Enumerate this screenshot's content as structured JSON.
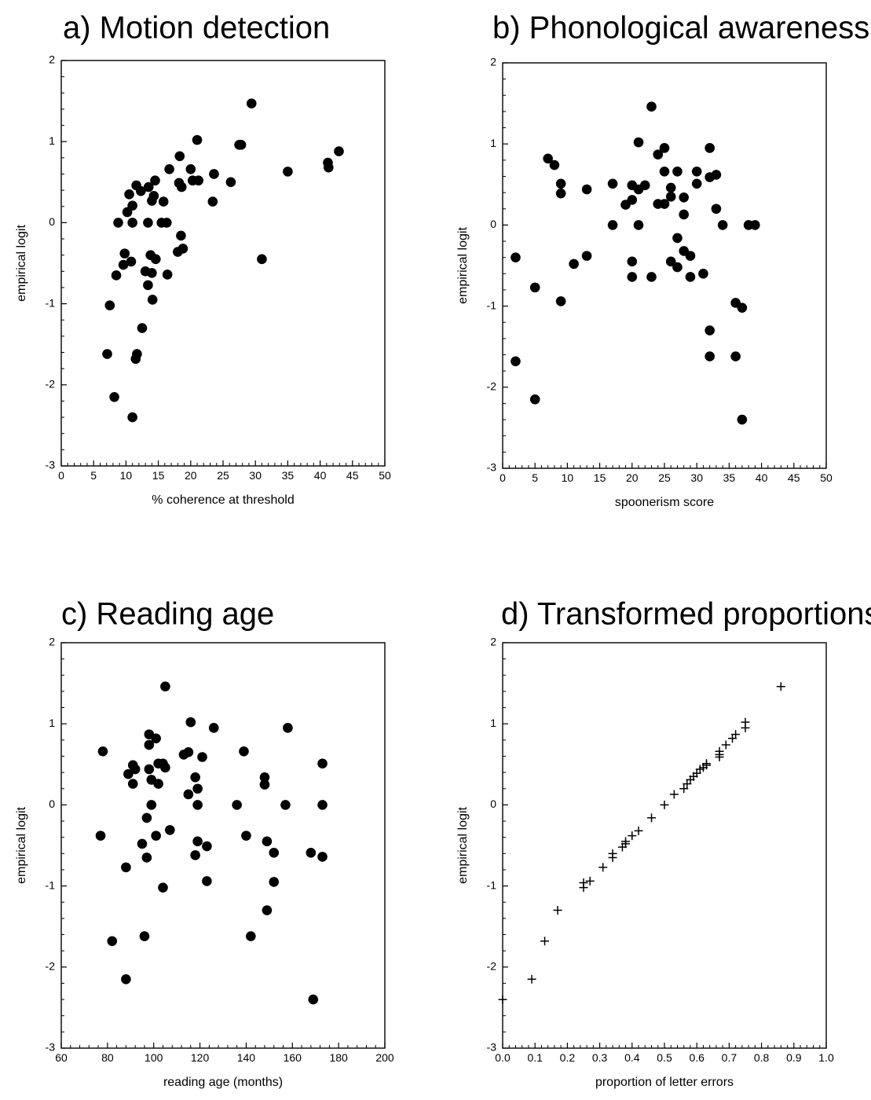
{
  "chart_data": [
    {
      "panel": "a",
      "type": "scatter",
      "title": "a) Motion detection",
      "xlabel": "% coherence at threshold",
      "ylabel": "empirical logit",
      "xlim": [
        0,
        50
      ],
      "ylim": [
        -3,
        2
      ],
      "xticks": [
        0,
        5,
        10,
        15,
        20,
        25,
        30,
        35,
        40,
        45,
        50
      ],
      "yticks": [
        -3,
        -2,
        -1,
        0,
        1,
        2
      ],
      "marker": "circle",
      "grid": false,
      "points": [
        [
          7.1,
          -1.62
        ],
        [
          7.5,
          -1.02
        ],
        [
          8.2,
          -2.15
        ],
        [
          8.5,
          -0.65
        ],
        [
          8.8,
          0.0
        ],
        [
          9.6,
          -0.52
        ],
        [
          9.8,
          -0.38
        ],
        [
          10.2,
          0.13
        ],
        [
          10.5,
          0.35
        ],
        [
          10.8,
          -0.48
        ],
        [
          11.0,
          0.0
        ],
        [
          11.0,
          0.21
        ],
        [
          11.0,
          -2.4
        ],
        [
          11.5,
          -1.68
        ],
        [
          11.7,
          -1.62
        ],
        [
          11.6,
          0.46
        ],
        [
          12.3,
          0.39
        ],
        [
          12.5,
          -1.3
        ],
        [
          13.0,
          -0.6
        ],
        [
          13.4,
          -0.77
        ],
        [
          13.4,
          0.0
        ],
        [
          13.5,
          0.44
        ],
        [
          13.8,
          -0.4
        ],
        [
          14.0,
          -0.62
        ],
        [
          14.0,
          0.27
        ],
        [
          14.1,
          -0.95
        ],
        [
          14.3,
          0.33
        ],
        [
          14.6,
          -0.45
        ],
        [
          14.5,
          0.52
        ],
        [
          15.5,
          0.0
        ],
        [
          15.8,
          0.26
        ],
        [
          16.3,
          0.0
        ],
        [
          16.4,
          -0.64
        ],
        [
          16.7,
          0.66
        ],
        [
          18.0,
          -0.36
        ],
        [
          18.2,
          0.49
        ],
        [
          18.5,
          -0.16
        ],
        [
          18.8,
          -0.32
        ],
        [
          18.3,
          0.82
        ],
        [
          18.6,
          0.44
        ],
        [
          20.0,
          0.66
        ],
        [
          20.3,
          0.52
        ],
        [
          21.0,
          1.02
        ],
        [
          21.2,
          0.52
        ],
        [
          23.4,
          0.26
        ],
        [
          23.6,
          0.6
        ],
        [
          26.2,
          0.5
        ],
        [
          27.5,
          0.96
        ],
        [
          27.8,
          0.96
        ],
        [
          29.4,
          1.47
        ],
        [
          31.0,
          -0.45
        ],
        [
          35.0,
          0.63
        ],
        [
          41.2,
          0.74
        ],
        [
          41.3,
          0.68
        ],
        [
          42.9,
          0.88
        ]
      ]
    },
    {
      "panel": "b",
      "type": "scatter",
      "title": "b) Phonological awareness",
      "xlabel": "spoonerism score",
      "ylabel": "empirical logit",
      "xlim": [
        0,
        50
      ],
      "ylim": [
        -3,
        2
      ],
      "xticks": [
        0,
        5,
        10,
        15,
        20,
        25,
        30,
        35,
        40,
        45,
        50
      ],
      "yticks": [
        -3,
        -2,
        -1,
        0,
        1,
        2
      ],
      "marker": "circle",
      "grid": false,
      "points": [
        [
          2,
          -0.4
        ],
        [
          2,
          -1.68
        ],
        [
          5,
          -0.77
        ],
        [
          5,
          -2.15
        ],
        [
          7,
          0.82
        ],
        [
          8,
          0.74
        ],
        [
          9,
          0.51
        ],
        [
          9,
          0.39
        ],
        [
          9,
          -0.94
        ],
        [
          11,
          -0.48
        ],
        [
          13,
          0.44
        ],
        [
          13,
          -0.38
        ],
        [
          17,
          0.51
        ],
        [
          17,
          0.0
        ],
        [
          19,
          0.25
        ],
        [
          20,
          0.31
        ],
        [
          20,
          0.49
        ],
        [
          20,
          -0.45
        ],
        [
          20,
          -0.64
        ],
        [
          21,
          1.02
        ],
        [
          21,
          0.44
        ],
        [
          21,
          0.0
        ],
        [
          22,
          0.49
        ],
        [
          23,
          1.46
        ],
        [
          23,
          -0.64
        ],
        [
          24,
          0.87
        ],
        [
          24,
          0.26
        ],
        [
          25,
          0.95
        ],
        [
          25,
          0.66
        ],
        [
          25,
          0.26
        ],
        [
          26,
          0.46
        ],
        [
          26,
          0.35
        ],
        [
          26,
          -0.45
        ],
        [
          27,
          0.66
        ],
        [
          27,
          -0.16
        ],
        [
          27,
          -0.52
        ],
        [
          28,
          0.34
        ],
        [
          28,
          0.13
        ],
        [
          28,
          -0.32
        ],
        [
          29,
          -0.38
        ],
        [
          29,
          -0.64
        ],
        [
          30,
          0.66
        ],
        [
          30,
          0.51
        ],
        [
          31,
          -0.6
        ],
        [
          32,
          0.95
        ],
        [
          32,
          0.59
        ],
        [
          32,
          -1.3
        ],
        [
          32,
          -1.62
        ],
        [
          33,
          0.62
        ],
        [
          33,
          0.2
        ],
        [
          34,
          0.0
        ],
        [
          36,
          -0.96
        ],
        [
          36,
          -1.62
        ],
        [
          37,
          -1.02
        ],
        [
          37,
          -2.4
        ],
        [
          38,
          0.0
        ],
        [
          39,
          0.0
        ]
      ]
    },
    {
      "panel": "c",
      "type": "scatter",
      "title": "c) Reading age",
      "xlabel": "reading age (months)",
      "ylabel": "empirical logit",
      "xlim": [
        60,
        200
      ],
      "ylim": [
        -3,
        2
      ],
      "xticks": [
        60,
        80,
        100,
        120,
        140,
        160,
        180,
        200
      ],
      "yticks": [
        -3,
        -2,
        -1,
        0,
        1,
        2
      ],
      "marker": "circle",
      "grid": false,
      "points": [
        [
          77,
          -0.38
        ],
        [
          78,
          0.66
        ],
        [
          82,
          -1.68
        ],
        [
          88,
          -0.77
        ],
        [
          88,
          -2.15
        ],
        [
          89,
          0.38
        ],
        [
          91,
          0.49
        ],
        [
          91,
          0.26
        ],
        [
          92,
          0.44
        ],
        [
          95,
          -0.48
        ],
        [
          96,
          -1.62
        ],
        [
          97,
          -0.16
        ],
        [
          97,
          -0.65
        ],
        [
          98,
          0.87
        ],
        [
          98,
          0.74
        ],
        [
          98,
          0.44
        ],
        [
          99,
          0.31
        ],
        [
          99,
          0.0
        ],
        [
          101,
          0.82
        ],
        [
          101,
          -0.38
        ],
        [
          102,
          0.51
        ],
        [
          102,
          0.26
        ],
        [
          104,
          0.51
        ],
        [
          104,
          -1.02
        ],
        [
          105,
          0.46
        ],
        [
          105,
          1.46
        ],
        [
          107,
          -0.31
        ],
        [
          113,
          0.62
        ],
        [
          115,
          0.65
        ],
        [
          115,
          0.13
        ],
        [
          116,
          1.02
        ],
        [
          118,
          0.34
        ],
        [
          118,
          -0.62
        ],
        [
          119,
          0.2
        ],
        [
          119,
          -0.45
        ],
        [
          119,
          0.0
        ],
        [
          121,
          0.59
        ],
        [
          123,
          -0.94
        ],
        [
          123,
          -0.51
        ],
        [
          126,
          0.95
        ],
        [
          136,
          0.0
        ],
        [
          139,
          0.66
        ],
        [
          140,
          -0.38
        ],
        [
          142,
          -1.62
        ],
        [
          148,
          0.34
        ],
        [
          148,
          0.25
        ],
        [
          149,
          -0.45
        ],
        [
          149,
          -1.3
        ],
        [
          152,
          -0.59
        ],
        [
          152,
          -0.95
        ],
        [
          157,
          0.0
        ],
        [
          158,
          0.95
        ],
        [
          168,
          -0.59
        ],
        [
          169,
          -2.4
        ],
        [
          173,
          0.51
        ],
        [
          173,
          0.0
        ],
        [
          173,
          -0.64
        ]
      ]
    },
    {
      "panel": "d",
      "type": "scatter",
      "title": "d) Transformed proportions",
      "xlabel": "proportion of letter errors",
      "ylabel": "empirical logit",
      "xlim": [
        0.0,
        1.0
      ],
      "ylim": [
        -3,
        2
      ],
      "xticks": [
        "0.0",
        "0.1",
        "0.2",
        "0.3",
        "0.4",
        "0.5",
        "0.6",
        "0.7",
        "0.8",
        "0.9",
        "1.0"
      ],
      "yticks": [
        -3,
        -2,
        -1,
        0,
        1,
        2
      ],
      "marker": "plus",
      "grid": false,
      "points": [
        [
          0.0,
          -2.4
        ],
        [
          0.09,
          -2.15
        ],
        [
          0.13,
          -1.68
        ],
        [
          0.17,
          -1.3
        ],
        [
          0.25,
          -1.02
        ],
        [
          0.25,
          -0.96
        ],
        [
          0.27,
          -0.94
        ],
        [
          0.31,
          -0.77
        ],
        [
          0.34,
          -0.65
        ],
        [
          0.34,
          -0.6
        ],
        [
          0.37,
          -0.52
        ],
        [
          0.38,
          -0.48
        ],
        [
          0.38,
          -0.45
        ],
        [
          0.4,
          -0.38
        ],
        [
          0.42,
          -0.32
        ],
        [
          0.46,
          -0.16
        ],
        [
          0.5,
          0.0
        ],
        [
          0.53,
          0.13
        ],
        [
          0.56,
          0.2
        ],
        [
          0.57,
          0.26
        ],
        [
          0.58,
          0.31
        ],
        [
          0.59,
          0.35
        ],
        [
          0.6,
          0.39
        ],
        [
          0.61,
          0.44
        ],
        [
          0.62,
          0.46
        ],
        [
          0.63,
          0.49
        ],
        [
          0.63,
          0.51
        ],
        [
          0.67,
          0.59
        ],
        [
          0.67,
          0.62
        ],
        [
          0.67,
          0.66
        ],
        [
          0.69,
          0.74
        ],
        [
          0.71,
          0.82
        ],
        [
          0.72,
          0.87
        ],
        [
          0.75,
          0.95
        ],
        [
          0.75,
          1.02
        ],
        [
          0.86,
          1.46
        ]
      ]
    }
  ]
}
